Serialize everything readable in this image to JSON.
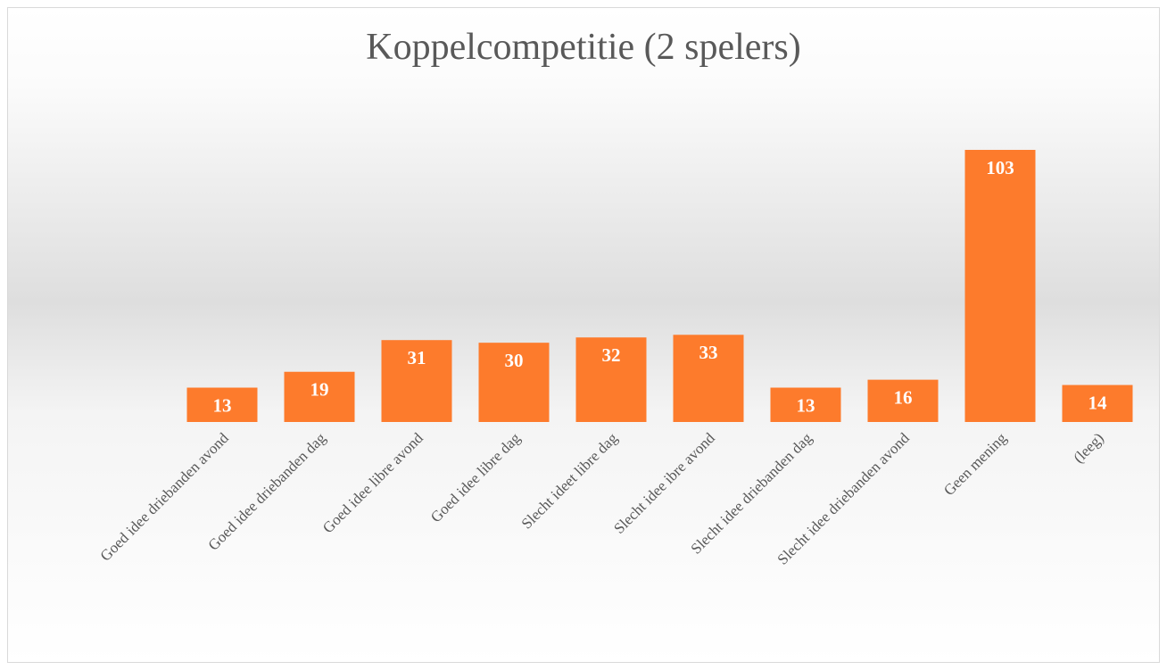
{
  "chart_data": {
    "type": "bar",
    "title": "Koppelcompetitie (2 spelers)",
    "categories": [
      "Goed idee driebanden avond",
      "Goed idee driebanden dag",
      "Goed idee libre avond",
      "Goed idee libre dag",
      "Slecht ideet libre dag",
      "Slecht idee ibre avond",
      "Slecht idee driebanden dag",
      "Slecht idee driebanden avond",
      "Geen mening",
      "(leeg)"
    ],
    "values": [
      13,
      19,
      31,
      30,
      32,
      33,
      13,
      16,
      103,
      14
    ],
    "color": "#fd7b2c"
  }
}
